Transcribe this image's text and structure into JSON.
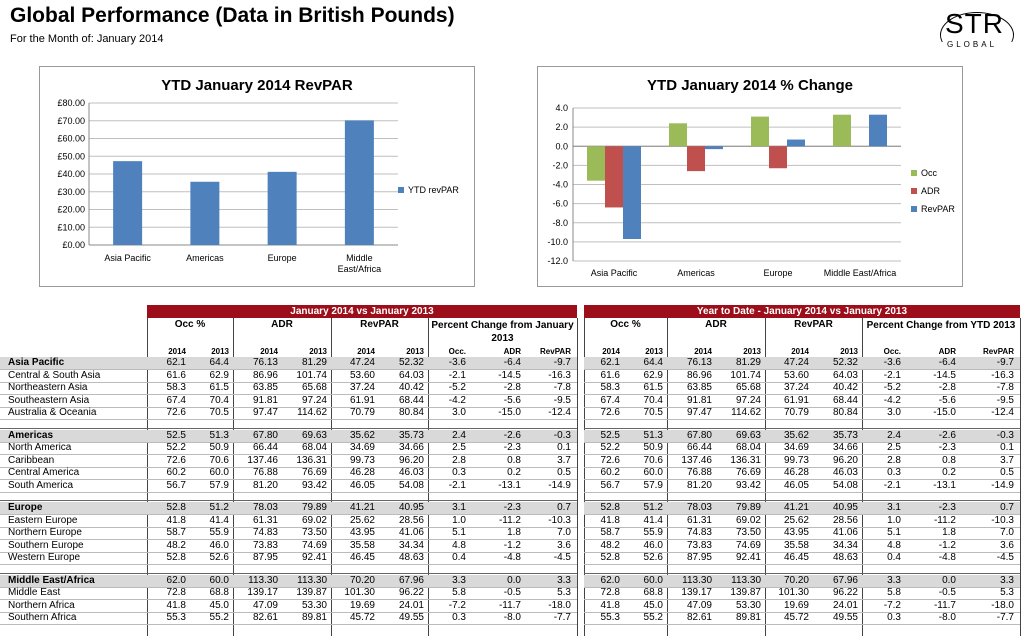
{
  "header": {
    "title": "Global Performance (Data in British Pounds)",
    "subtitle": "For the Month of: January 2014",
    "logo_text": "STR",
    "logo_sub": "GLOBAL"
  },
  "chart_data": [
    {
      "type": "bar",
      "title": "YTD January 2014 RevPAR",
      "categories": [
        "Asia Pacific",
        "Americas",
        "Europe",
        "Middle East/Africa"
      ],
      "series": [
        {
          "name": "YTD revPAR",
          "values": [
            47.24,
            35.62,
            41.21,
            70.2
          ],
          "color": "#4F81BD"
        }
      ],
      "ylim": [
        0,
        80
      ],
      "yticks": [
        "£0.00",
        "£10.00",
        "£20.00",
        "£30.00",
        "£40.00",
        "£50.00",
        "£60.00",
        "£70.00",
        "£80.00"
      ],
      "legend": "right"
    },
    {
      "type": "bar",
      "title": "YTD January 2014 % Change",
      "categories": [
        "Asia Pacific",
        "Americas",
        "Europe",
        "Middle East/Africa"
      ],
      "series": [
        {
          "name": "Occ",
          "values": [
            -3.6,
            2.4,
            3.1,
            3.3
          ],
          "color": "#9BBB59"
        },
        {
          "name": "ADR",
          "values": [
            -6.4,
            -2.6,
            -2.3,
            0.0
          ],
          "color": "#C0504D"
        },
        {
          "name": "RevPAR",
          "values": [
            -9.7,
            -0.3,
            0.7,
            3.3
          ],
          "color": "#4F81BD"
        }
      ],
      "ylim": [
        -12,
        4
      ],
      "yticks": [
        "-12.0",
        "-10.0",
        "-8.0",
        "-6.0",
        "-4.0",
        "-2.0",
        "0.0",
        "2.0",
        "4.0"
      ],
      "legend": "right"
    }
  ],
  "table": {
    "left_header": "January 2014 vs January 2013",
    "right_header": "Year to Date - January 2014 vs January 2013",
    "groups": [
      "Occ %",
      "ADR",
      "RevPAR"
    ],
    "left_pct_group": "Percent Change from January 2013",
    "right_pct_group": "Percent Change from YTD 2013",
    "year_labels": [
      "2014",
      "2013"
    ],
    "pct_labels": [
      "Occ.",
      "ADR",
      "RevPAR"
    ],
    "sections": [
      {
        "rows": [
          {
            "name": "Asia Pacific",
            "bold": true,
            "v": [
              "62.1",
              "64.4",
              "76.13",
              "81.29",
              "47.24",
              "52.32",
              "-3.6",
              "-6.4",
              "-9.7"
            ]
          },
          {
            "name": "Central & South Asia",
            "v": [
              "61.6",
              "62.9",
              "86.96",
              "101.74",
              "53.60",
              "64.03",
              "-2.1",
              "-14.5",
              "-16.3"
            ]
          },
          {
            "name": "Northeastern Asia",
            "v": [
              "58.3",
              "61.5",
              "63.85",
              "65.68",
              "37.24",
              "40.42",
              "-5.2",
              "-2.8",
              "-7.8"
            ]
          },
          {
            "name": "Southeastern Asia",
            "v": [
              "67.4",
              "70.4",
              "91.81",
              "97.24",
              "61.91",
              "68.44",
              "-4.2",
              "-5.6",
              "-9.5"
            ]
          },
          {
            "name": "Australia & Oceania",
            "v": [
              "72.6",
              "70.5",
              "97.47",
              "114.62",
              "70.79",
              "80.84",
              "3.0",
              "-15.0",
              "-12.4"
            ]
          }
        ]
      },
      {
        "rows": [
          {
            "name": "Americas",
            "bold": true,
            "v": [
              "52.5",
              "51.3",
              "67.80",
              "69.63",
              "35.62",
              "35.73",
              "2.4",
              "-2.6",
              "-0.3"
            ]
          },
          {
            "name": "North America",
            "v": [
              "52.2",
              "50.9",
              "66.44",
              "68.04",
              "34.69",
              "34.66",
              "2.5",
              "-2.3",
              "0.1"
            ]
          },
          {
            "name": "Caribbean",
            "v": [
              "72.6",
              "70.6",
              "137.46",
              "136.31",
              "99.73",
              "96.20",
              "2.8",
              "0.8",
              "3.7"
            ]
          },
          {
            "name": "Central America",
            "v": [
              "60.2",
              "60.0",
              "76.88",
              "76.69",
              "46.28",
              "46.03",
              "0.3",
              "0.2",
              "0.5"
            ]
          },
          {
            "name": "South America",
            "v": [
              "56.7",
              "57.9",
              "81.20",
              "93.42",
              "46.05",
              "54.08",
              "-2.1",
              "-13.1",
              "-14.9"
            ]
          }
        ]
      },
      {
        "rows": [
          {
            "name": "Europe",
            "bold": true,
            "v": [
              "52.8",
              "51.2",
              "78.03",
              "79.89",
              "41.21",
              "40.95",
              "3.1",
              "-2.3",
              "0.7"
            ]
          },
          {
            "name": "Eastern Europe",
            "v": [
              "41.8",
              "41.4",
              "61.31",
              "69.02",
              "25.62",
              "28.56",
              "1.0",
              "-11.2",
              "-10.3"
            ]
          },
          {
            "name": "Northern Europe",
            "v": [
              "58.7",
              "55.9",
              "74.83",
              "73.50",
              "43.95",
              "41.06",
              "5.1",
              "1.8",
              "7.0"
            ]
          },
          {
            "name": "Southern Europe",
            "v": [
              "48.2",
              "46.0",
              "73.83",
              "74.69",
              "35.58",
              "34.34",
              "4.8",
              "-1.2",
              "3.6"
            ]
          },
          {
            "name": "Western Europe",
            "v": [
              "52.8",
              "52.6",
              "87.95",
              "92.41",
              "46.45",
              "48.63",
              "0.4",
              "-4.8",
              "-4.5"
            ]
          }
        ]
      },
      {
        "rows": [
          {
            "name": "Middle East/Africa",
            "bold": true,
            "v": [
              "62.0",
              "60.0",
              "113.30",
              "113.30",
              "70.20",
              "67.96",
              "3.3",
              "0.0",
              "3.3"
            ]
          },
          {
            "name": "Middle East",
            "v": [
              "72.8",
              "68.8",
              "139.17",
              "139.87",
              "101.30",
              "96.22",
              "5.8",
              "-0.5",
              "5.3"
            ]
          },
          {
            "name": "Northern Africa",
            "v": [
              "41.8",
              "45.0",
              "47.09",
              "53.30",
              "19.69",
              "24.01",
              "-7.2",
              "-11.7",
              "-18.0"
            ]
          },
          {
            "name": "Southern Africa",
            "v": [
              "55.3",
              "55.2",
              "82.61",
              "89.81",
              "45.72",
              "49.55",
              "0.3",
              "-8.0",
              "-7.7"
            ]
          }
        ]
      }
    ]
  }
}
